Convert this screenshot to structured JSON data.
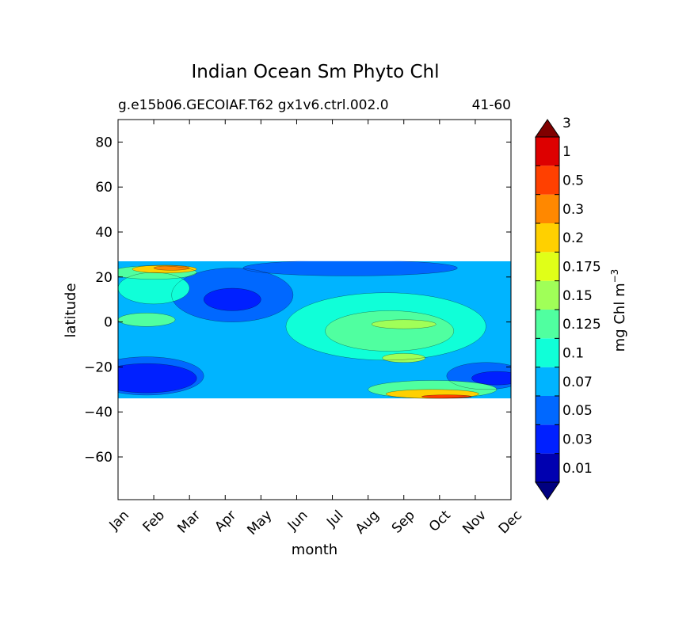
{
  "chart_data": {
    "type": "contourf",
    "title": "Indian Ocean Sm Phyto Chl",
    "subtitle_left": "g.e15b06.GECOIAF.T62 gx1v6.ctrl.002.0",
    "subtitle_right": "41-60",
    "xlabel": "month",
    "ylabel": "latitude",
    "x_categories": [
      "Jan",
      "Feb",
      "Mar",
      "Apr",
      "May",
      "Jun",
      "Jul",
      "Aug",
      "Sep",
      "Oct",
      "Nov",
      "Dec"
    ],
    "xlim": [
      1,
      12
    ],
    "ylim": [
      -79,
      90
    ],
    "yticks": [
      80,
      60,
      40,
      20,
      0,
      -20,
      -40,
      -60
    ],
    "ytick_labels": [
      "80",
      "60",
      "40",
      "20",
      "0",
      "−20",
      "−40",
      "−60"
    ],
    "data_lat_range": [
      -34,
      27
    ],
    "colorbar": {
      "label": "mg Chl m",
      "label_superscript": "−3",
      "levels": [
        "0.01",
        "0.03",
        "0.05",
        "0.07",
        "0.1",
        "0.125",
        "0.15",
        "0.175",
        "0.2",
        "0.3",
        "0.5",
        "1",
        "3"
      ],
      "colors": [
        "#000080",
        "#0000b0",
        "#0020ff",
        "#0068ff",
        "#00b4ff",
        "#10ffd8",
        "#50ffa0",
        "#a0ff58",
        "#e0ff18",
        "#ffd000",
        "#ff8800",
        "#ff4000",
        "#dd0000",
        "#800000"
      ],
      "extend": "both"
    },
    "regions": [
      {
        "level": 4,
        "desc": "background",
        "lon": [
          1,
          12
        ],
        "lat": [
          -34,
          27
        ]
      },
      {
        "level": 3,
        "month_center": 1.8,
        "lat_center": -24,
        "month_span": 3.2,
        "lat_span": 17
      },
      {
        "level": 2,
        "month_center": 1.8,
        "lat_center": -25,
        "month_span": 2.8,
        "lat_span": 13
      },
      {
        "level": 3,
        "month_center": 11.3,
        "lat_center": -24,
        "month_span": 2.2,
        "lat_span": 12
      },
      {
        "level": 2,
        "month_center": 11.6,
        "lat_center": -25,
        "month_span": 1.4,
        "lat_span": 6
      },
      {
        "level": 3,
        "month_center": 4.2,
        "lat_center": 12,
        "month_span": 3.4,
        "lat_span": 24
      },
      {
        "level": 2,
        "month_center": 4.2,
        "lat_center": 10,
        "month_span": 1.6,
        "lat_span": 10
      },
      {
        "level": 3,
        "month_center": 7.5,
        "lat_center": 24,
        "month_span": 6,
        "lat_span": 7
      },
      {
        "level": 5,
        "month_center": 8.5,
        "lat_center": -2,
        "month_span": 5.6,
        "lat_span": 30
      },
      {
        "level": 6,
        "month_center": 8.6,
        "lat_center": -4,
        "month_span": 3.6,
        "lat_span": 18
      },
      {
        "level": 7,
        "month_center": 9,
        "lat_center": -1,
        "month_span": 1.8,
        "lat_span": 4
      },
      {
        "level": 7,
        "month_center": 9,
        "lat_center": -16,
        "month_span": 1.2,
        "lat_span": 4
      },
      {
        "level": 5,
        "month_center": 2,
        "lat_center": 15,
        "month_span": 2,
        "lat_span": 14
      },
      {
        "level": 6,
        "month_center": 1.8,
        "lat_center": 1,
        "month_span": 1.6,
        "lat_span": 6
      },
      {
        "level": 6,
        "month_center": 2,
        "lat_center": 22,
        "month_span": 2.4,
        "lat_span": 6
      },
      {
        "level": 9,
        "month_center": 2.3,
        "lat_center": 23.5,
        "month_span": 1.8,
        "lat_span": 3.5
      },
      {
        "level": 10,
        "month_center": 2.5,
        "lat_center": 24,
        "month_span": 1,
        "lat_span": 2
      },
      {
        "level": 6,
        "month_center": 9.8,
        "lat_center": -30,
        "month_span": 3.6,
        "lat_span": 8
      },
      {
        "level": 9,
        "month_center": 9.8,
        "lat_center": -32,
        "month_span": 2.6,
        "lat_span": 4
      },
      {
        "level": 11,
        "month_center": 10.2,
        "lat_center": -33.2,
        "month_span": 1.4,
        "lat_span": 1.6
      }
    ]
  }
}
